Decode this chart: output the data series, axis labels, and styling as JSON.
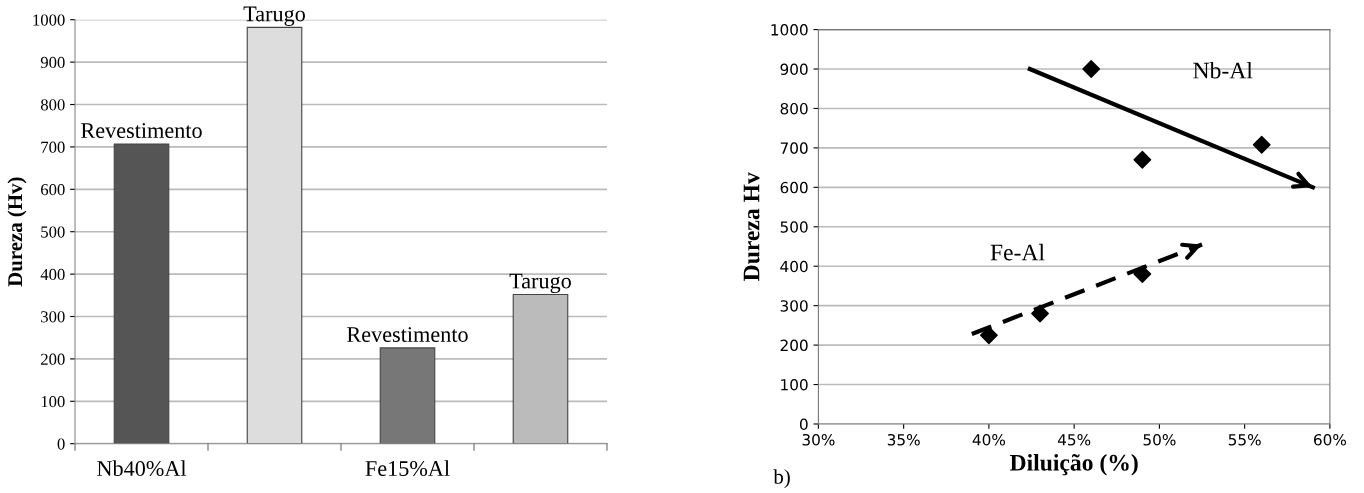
{
  "chart_data": [
    {
      "type": "bar",
      "ylabel": "Dureza (Hv)",
      "categories": [
        "Nb40%Al",
        null,
        "Fe15%Al",
        null
      ],
      "ylim": [
        0,
        1000
      ],
      "yticks": [
        0,
        100,
        200,
        300,
        400,
        500,
        600,
        700,
        800,
        900,
        1000
      ],
      "grid": "y",
      "legend": false,
      "series": [
        {
          "name": "Revestimento",
          "colors": [
            "#555555",
            null,
            "#777777",
            null
          ],
          "values": [
            707,
            null,
            226,
            null
          ]
        },
        {
          "name": "Tarugo",
          "colors": [
            null,
            "#dddddd",
            null,
            "#bbbbbb"
          ],
          "values": [
            null,
            982,
            null,
            352
          ]
        }
      ]
    },
    {
      "type": "scatter",
      "xlabel": "Diluição (%)",
      "ylabel": "Dureza Hv",
      "xlim": [
        30,
        60
      ],
      "xticks": [
        {
          "value": 30,
          "label": "30%"
        },
        {
          "value": 35,
          "label": "35%"
        },
        {
          "value": 40,
          "label": "40%"
        },
        {
          "value": 45,
          "label": "45%"
        },
        {
          "value": 50,
          "label": "50%"
        },
        {
          "value": 55,
          "label": "55%"
        },
        {
          "value": 60,
          "label": "60%"
        }
      ],
      "ylim": [
        0,
        1000
      ],
      "yticks": [
        0,
        100,
        200,
        300,
        400,
        500,
        600,
        700,
        800,
        900,
        1000
      ],
      "grid": "y",
      "legend": false,
      "series": [
        {
          "color": "#000000",
          "marker": "diamond",
          "x": [
            46,
            49,
            56,
            40,
            43,
            49
          ],
          "values": [
            900,
            670,
            708,
            225,
            280,
            380
          ]
        },
        {
          "type": "line",
          "name": "Nb-Al",
          "color": "#000000",
          "marker": "none",
          "line_style": "solid",
          "x": [
            42.4,
            59
          ],
          "values": [
            900,
            600
          ]
        },
        {
          "type": "line",
          "name": "Fe-Al",
          "color": "#000000",
          "marker": "none",
          "line_style": "dashed",
          "x": [
            39,
            52.5
          ],
          "values": [
            228,
            455
          ]
        }
      ],
      "annotations": [
        "b)"
      ]
    }
  ]
}
